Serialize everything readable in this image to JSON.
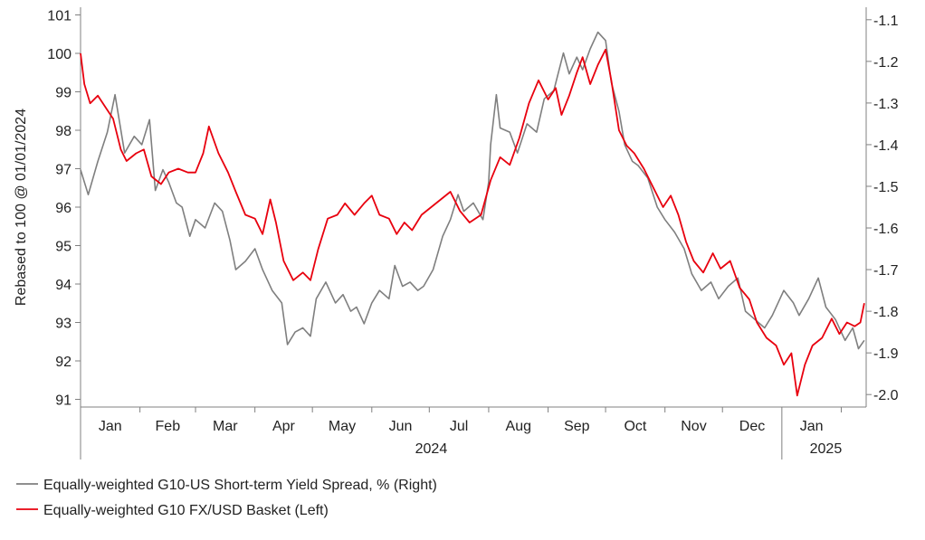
{
  "chart_data": {
    "type": "line",
    "ylabel": "Rebased to 100 @ 01/01/2024",
    "y_left": {
      "lim": [
        90.8,
        101.2
      ],
      "ticks": [
        "91",
        "92",
        "93",
        "94",
        "95",
        "96",
        "97",
        "98",
        "99",
        "100",
        "101"
      ]
    },
    "y_right": {
      "lim": [
        -2.03,
        -1.07
      ],
      "ticks": [
        "-2.0",
        "-1.9",
        "-1.8",
        "-1.7",
        "-1.6",
        "-1.5",
        "-1.4",
        "-1.3",
        "-1.2",
        "-1.1"
      ]
    },
    "x_months": [
      "Jan",
      "Feb",
      "Mar",
      "Apr",
      "May",
      "Jun",
      "Jul",
      "Aug",
      "Sep",
      "Oct",
      "Nov",
      "Dec",
      "Jan"
    ],
    "x_years": [
      "2024",
      "2025"
    ],
    "x_range": [
      "2024-01-01",
      "2025-02-14"
    ],
    "grid": false,
    "legend_position": "bottom",
    "series": [
      {
        "name": "Equally-weighted G10-US Short-term Yield Spread, % (Right)",
        "axis": "right",
        "color": "#7f7f7f",
        "points": [
          [
            "2024-01-01",
            -1.46
          ],
          [
            "2024-01-05",
            -1.52
          ],
          [
            "2024-01-10",
            -1.44
          ],
          [
            "2024-01-15",
            -1.37
          ],
          [
            "2024-01-19",
            -1.28
          ],
          [
            "2024-01-24",
            -1.42
          ],
          [
            "2024-01-29",
            -1.38
          ],
          [
            "2024-02-02",
            -1.4
          ],
          [
            "2024-02-06",
            -1.34
          ],
          [
            "2024-02-09",
            -1.51
          ],
          [
            "2024-02-13",
            -1.46
          ],
          [
            "2024-02-16",
            -1.49
          ],
          [
            "2024-02-20",
            -1.54
          ],
          [
            "2024-02-23",
            -1.55
          ],
          [
            "2024-02-27",
            -1.62
          ],
          [
            "2024-03-01",
            -1.58
          ],
          [
            "2024-03-06",
            -1.6
          ],
          [
            "2024-03-11",
            -1.54
          ],
          [
            "2024-03-15",
            -1.56
          ],
          [
            "2024-03-19",
            -1.63
          ],
          [
            "2024-03-22",
            -1.7
          ],
          [
            "2024-03-27",
            -1.68
          ],
          [
            "2024-04-01",
            -1.65
          ],
          [
            "2024-04-05",
            -1.7
          ],
          [
            "2024-04-10",
            -1.75
          ],
          [
            "2024-04-15",
            -1.78
          ],
          [
            "2024-04-18",
            -1.88
          ],
          [
            "2024-04-22",
            -1.85
          ],
          [
            "2024-04-26",
            -1.84
          ],
          [
            "2024-04-30",
            -1.86
          ],
          [
            "2024-05-03",
            -1.77
          ],
          [
            "2024-05-08",
            -1.73
          ],
          [
            "2024-05-13",
            -1.78
          ],
          [
            "2024-05-17",
            -1.76
          ],
          [
            "2024-05-21",
            -1.8
          ],
          [
            "2024-05-24",
            -1.79
          ],
          [
            "2024-05-28",
            -1.83
          ],
          [
            "2024-06-01",
            -1.78
          ],
          [
            "2024-06-05",
            -1.75
          ],
          [
            "2024-06-10",
            -1.77
          ],
          [
            "2024-06-13",
            -1.69
          ],
          [
            "2024-06-17",
            -1.74
          ],
          [
            "2024-06-21",
            -1.73
          ],
          [
            "2024-06-25",
            -1.75
          ],
          [
            "2024-06-28",
            -1.74
          ],
          [
            "2024-07-03",
            -1.7
          ],
          [
            "2024-07-08",
            -1.62
          ],
          [
            "2024-07-12",
            -1.58
          ],
          [
            "2024-07-16",
            -1.52
          ],
          [
            "2024-07-19",
            -1.56
          ],
          [
            "2024-07-24",
            -1.54
          ],
          [
            "2024-07-29",
            -1.58
          ],
          [
            "2024-08-01",
            -1.49
          ],
          [
            "2024-08-02",
            -1.4
          ],
          [
            "2024-08-05",
            -1.28
          ],
          [
            "2024-08-07",
            -1.36
          ],
          [
            "2024-08-12",
            -1.37
          ],
          [
            "2024-08-16",
            -1.42
          ],
          [
            "2024-08-21",
            -1.35
          ],
          [
            "2024-08-26",
            -1.37
          ],
          [
            "2024-08-30",
            -1.29
          ],
          [
            "2024-09-04",
            -1.27
          ],
          [
            "2024-09-09",
            -1.18
          ],
          [
            "2024-09-12",
            -1.23
          ],
          [
            "2024-09-16",
            -1.19
          ],
          [
            "2024-09-19",
            -1.22
          ],
          [
            "2024-09-23",
            -1.17
          ],
          [
            "2024-09-27",
            -1.13
          ],
          [
            "2024-10-01",
            -1.15
          ],
          [
            "2024-10-04",
            -1.25
          ],
          [
            "2024-10-08",
            -1.32
          ],
          [
            "2024-10-11",
            -1.4
          ],
          [
            "2024-10-15",
            -1.44
          ],
          [
            "2024-10-18",
            -1.45
          ],
          [
            "2024-10-23",
            -1.48
          ],
          [
            "2024-10-28",
            -1.55
          ],
          [
            "2024-11-01",
            -1.58
          ],
          [
            "2024-11-06",
            -1.61
          ],
          [
            "2024-11-11",
            -1.65
          ],
          [
            "2024-11-15",
            -1.71
          ],
          [
            "2024-11-20",
            -1.75
          ],
          [
            "2024-11-25",
            -1.73
          ],
          [
            "2024-11-29",
            -1.77
          ],
          [
            "2024-12-04",
            -1.74
          ],
          [
            "2024-12-09",
            -1.72
          ],
          [
            "2024-12-13",
            -1.8
          ],
          [
            "2024-12-18",
            -1.82
          ],
          [
            "2024-12-23",
            -1.84
          ],
          [
            "2024-12-27",
            -1.81
          ],
          [
            "2025-01-02",
            -1.75
          ],
          [
            "2025-01-07",
            -1.78
          ],
          [
            "2025-01-10",
            -1.81
          ],
          [
            "2025-01-15",
            -1.77
          ],
          [
            "2025-01-20",
            -1.72
          ],
          [
            "2025-01-24",
            -1.79
          ],
          [
            "2025-01-29",
            -1.82
          ],
          [
            "2025-02-03",
            -1.87
          ],
          [
            "2025-02-07",
            -1.84
          ],
          [
            "2025-02-10",
            -1.89
          ],
          [
            "2025-02-13",
            -1.87
          ]
        ]
      },
      {
        "name": "Equally-weighted G10 FX/USD Basket (Left)",
        "axis": "left",
        "color": "#e8000e",
        "points": [
          [
            "2024-01-01",
            100.0
          ],
          [
            "2024-01-03",
            99.2
          ],
          [
            "2024-01-06",
            98.7
          ],
          [
            "2024-01-10",
            98.9
          ],
          [
            "2024-01-14",
            98.6
          ],
          [
            "2024-01-18",
            98.3
          ],
          [
            "2024-01-22",
            97.5
          ],
          [
            "2024-01-25",
            97.2
          ],
          [
            "2024-01-30",
            97.4
          ],
          [
            "2024-02-03",
            97.5
          ],
          [
            "2024-02-07",
            96.8
          ],
          [
            "2024-02-12",
            96.6
          ],
          [
            "2024-02-16",
            96.9
          ],
          [
            "2024-02-21",
            97.0
          ],
          [
            "2024-02-26",
            96.9
          ],
          [
            "2024-03-01",
            96.9
          ],
          [
            "2024-03-05",
            97.4
          ],
          [
            "2024-03-08",
            98.1
          ],
          [
            "2024-03-13",
            97.4
          ],
          [
            "2024-03-18",
            96.9
          ],
          [
            "2024-03-22",
            96.4
          ],
          [
            "2024-03-27",
            95.8
          ],
          [
            "2024-04-01",
            95.7
          ],
          [
            "2024-04-05",
            95.3
          ],
          [
            "2024-04-09",
            96.2
          ],
          [
            "2024-04-12",
            95.6
          ],
          [
            "2024-04-16",
            94.6
          ],
          [
            "2024-04-21",
            94.1
          ],
          [
            "2024-04-26",
            94.3
          ],
          [
            "2024-04-30",
            94.1
          ],
          [
            "2024-05-04",
            94.9
          ],
          [
            "2024-05-09",
            95.7
          ],
          [
            "2024-05-14",
            95.8
          ],
          [
            "2024-05-18",
            96.1
          ],
          [
            "2024-05-23",
            95.8
          ],
          [
            "2024-05-28",
            96.1
          ],
          [
            "2024-06-01",
            96.3
          ],
          [
            "2024-06-05",
            95.8
          ],
          [
            "2024-06-10",
            95.7
          ],
          [
            "2024-06-14",
            95.3
          ],
          [
            "2024-06-18",
            95.6
          ],
          [
            "2024-06-22",
            95.4
          ],
          [
            "2024-06-27",
            95.8
          ],
          [
            "2024-07-02",
            96.0
          ],
          [
            "2024-07-07",
            96.2
          ],
          [
            "2024-07-12",
            96.4
          ],
          [
            "2024-07-17",
            95.9
          ],
          [
            "2024-07-22",
            95.6
          ],
          [
            "2024-07-28",
            95.8
          ],
          [
            "2024-08-02",
            96.7
          ],
          [
            "2024-08-07",
            97.3
          ],
          [
            "2024-08-12",
            97.1
          ],
          [
            "2024-08-17",
            97.8
          ],
          [
            "2024-08-22",
            98.7
          ],
          [
            "2024-08-27",
            99.3
          ],
          [
            "2024-09-01",
            98.8
          ],
          [
            "2024-09-05",
            99.1
          ],
          [
            "2024-09-08",
            98.4
          ],
          [
            "2024-09-12",
            98.9
          ],
          [
            "2024-09-16",
            99.5
          ],
          [
            "2024-09-19",
            99.9
          ],
          [
            "2024-09-23",
            99.2
          ],
          [
            "2024-09-27",
            99.7
          ],
          [
            "2024-10-01",
            100.1
          ],
          [
            "2024-10-04",
            99.3
          ],
          [
            "2024-10-08",
            98.0
          ],
          [
            "2024-10-12",
            97.6
          ],
          [
            "2024-10-16",
            97.4
          ],
          [
            "2024-10-21",
            97.0
          ],
          [
            "2024-10-26",
            96.5
          ],
          [
            "2024-10-31",
            96.0
          ],
          [
            "2024-11-04",
            96.3
          ],
          [
            "2024-11-08",
            95.8
          ],
          [
            "2024-11-12",
            95.1
          ],
          [
            "2024-11-16",
            94.6
          ],
          [
            "2024-11-21",
            94.3
          ],
          [
            "2024-11-26",
            94.8
          ],
          [
            "2024-11-30",
            94.4
          ],
          [
            "2024-12-05",
            94.6
          ],
          [
            "2024-12-10",
            93.9
          ],
          [
            "2024-12-15",
            93.6
          ],
          [
            "2024-12-19",
            93.0
          ],
          [
            "2024-12-24",
            92.6
          ],
          [
            "2024-12-29",
            92.4
          ],
          [
            "2025-01-02",
            91.9
          ],
          [
            "2025-01-06",
            92.2
          ],
          [
            "2025-01-09",
            91.1
          ],
          [
            "2025-01-13",
            91.9
          ],
          [
            "2025-01-17",
            92.4
          ],
          [
            "2025-01-22",
            92.6
          ],
          [
            "2025-01-27",
            93.1
          ],
          [
            "2025-01-31",
            92.7
          ],
          [
            "2025-02-04",
            93.0
          ],
          [
            "2025-02-08",
            92.9
          ],
          [
            "2025-02-11",
            93.0
          ],
          [
            "2025-02-13",
            93.5
          ]
        ]
      }
    ]
  }
}
